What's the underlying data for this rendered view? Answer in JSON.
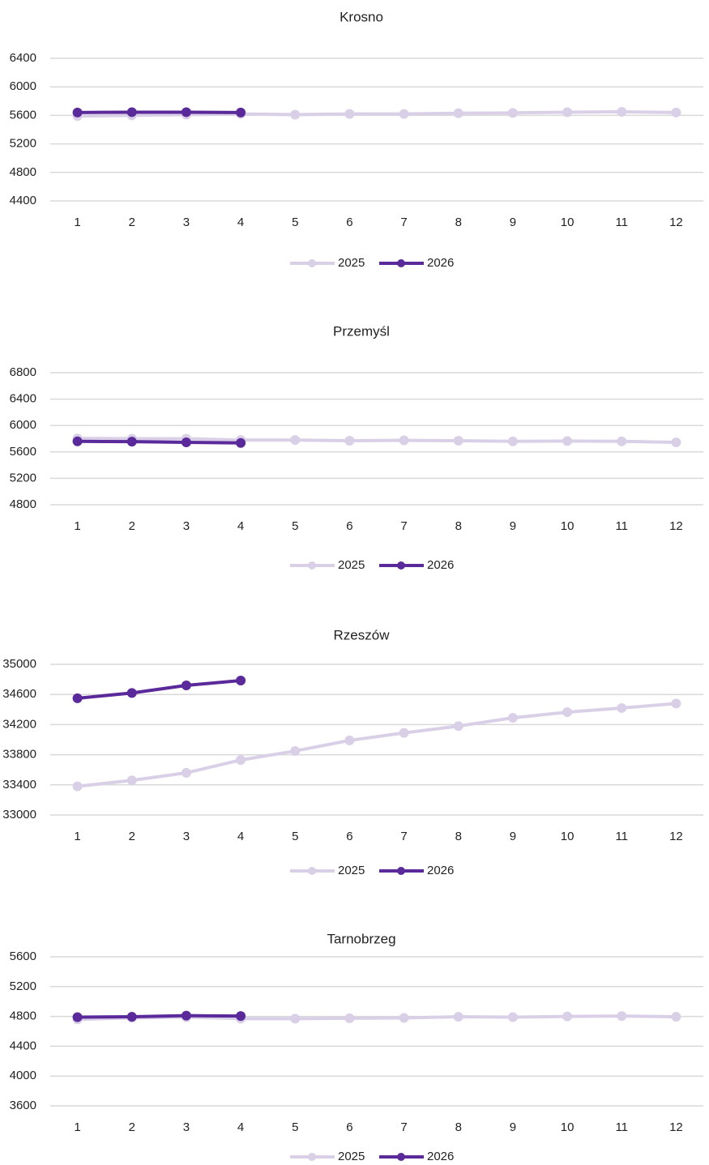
{
  "chart_data": [
    {
      "type": "line",
      "title": "Krosno",
      "categories": [
        "1",
        "2",
        "3",
        "4",
        "5",
        "6",
        "7",
        "8",
        "9",
        "10",
        "11",
        "12"
      ],
      "ylim": [
        4400,
        6400
      ],
      "yticks": [
        4400,
        4800,
        5200,
        5600,
        6000,
        6400
      ],
      "grid": true,
      "legend": "bottom",
      "series": [
        {
          "name": "2025",
          "color": "#d9d0e8",
          "values": [
            5590,
            5600,
            5610,
            5620,
            5610,
            5620,
            5620,
            5630,
            5635,
            5645,
            5650,
            5640
          ]
        },
        {
          "name": "2026",
          "color": "#5b2a9a",
          "values": [
            5640,
            5645,
            5645,
            5640,
            null,
            null,
            null,
            null,
            null,
            null,
            null,
            null
          ]
        }
      ]
    },
    {
      "type": "line",
      "title": "Przemyśl",
      "categories": [
        "1",
        "2",
        "3",
        "4",
        "5",
        "6",
        "7",
        "8",
        "9",
        "10",
        "11",
        "12"
      ],
      "ylim": [
        4800,
        6800
      ],
      "yticks": [
        4800,
        5200,
        5600,
        6000,
        6400,
        6800
      ],
      "grid": true,
      "legend": "bottom",
      "series": [
        {
          "name": "2025",
          "color": "#d9d0e8",
          "values": [
            5805,
            5800,
            5800,
            5780,
            5780,
            5770,
            5775,
            5770,
            5760,
            5765,
            5760,
            5745
          ]
        },
        {
          "name": "2026",
          "color": "#5b2a9a",
          "values": [
            5760,
            5755,
            5745,
            5735,
            null,
            null,
            null,
            null,
            null,
            null,
            null,
            null
          ]
        }
      ]
    },
    {
      "type": "line",
      "title": "Rzeszów",
      "categories": [
        "1",
        "2",
        "3",
        "4",
        "5",
        "6",
        "7",
        "8",
        "9",
        "10",
        "11",
        "12"
      ],
      "ylim": [
        33000,
        35000
      ],
      "yticks": [
        33000,
        33400,
        33800,
        34200,
        34600,
        35000
      ],
      "grid": true,
      "legend": "bottom",
      "series": [
        {
          "name": "2025",
          "color": "#d9d0e8",
          "values": [
            33380,
            33460,
            33560,
            33730,
            33850,
            33990,
            34090,
            34180,
            34290,
            34365,
            34420,
            34480
          ]
        },
        {
          "name": "2026",
          "color": "#5b2a9a",
          "values": [
            34550,
            34620,
            34720,
            34785,
            null,
            null,
            null,
            null,
            null,
            null,
            null,
            null
          ]
        }
      ]
    },
    {
      "type": "line",
      "title": "Tarnobrzeg",
      "categories": [
        "1",
        "2",
        "3",
        "4",
        "5",
        "6",
        "7",
        "8",
        "9",
        "10",
        "11",
        "12"
      ],
      "ylim": [
        3600,
        5600
      ],
      "yticks": [
        3600,
        4000,
        4400,
        4800,
        5200,
        5600
      ],
      "grid": true,
      "legend": "bottom",
      "series": [
        {
          "name": "2025",
          "color": "#d9d0e8",
          "values": [
            4760,
            4780,
            4790,
            4770,
            4770,
            4775,
            4780,
            4795,
            4790,
            4800,
            4805,
            4795
          ]
        },
        {
          "name": "2026",
          "color": "#5b2a9a",
          "values": [
            4790,
            4795,
            4810,
            4805,
            null,
            null,
            null,
            null,
            null,
            null,
            null,
            null
          ]
        }
      ]
    }
  ]
}
